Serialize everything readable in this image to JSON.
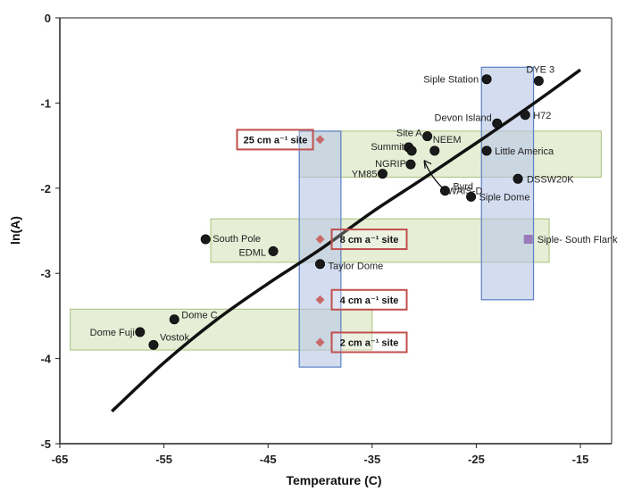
{
  "chart_data": {
    "type": "scatter",
    "xlabel": "Temperature (C)",
    "ylabel": "ln(A)",
    "xlim": [
      -65,
      -12
    ],
    "ylim": [
      -5,
      0
    ],
    "xticks": [
      -65,
      -55,
      -45,
      -35,
      -25,
      -15
    ],
    "yticks": [
      0,
      -1,
      -2,
      -3,
      -4,
      -5
    ],
    "tick_labels_x": [
      "-65",
      "-55",
      "-45",
      "-35",
      "-25",
      "-15"
    ],
    "tick_labels_y": [
      "0",
      "-1",
      "-2",
      "-3",
      "-4",
      "-5"
    ],
    "curve": [
      [
        -60,
        -4.62
      ],
      [
        -55,
        -4.05
      ],
      [
        -50,
        -3.55
      ],
      [
        -45,
        -3.12
      ],
      [
        -40,
        -2.72
      ],
      [
        -35,
        -2.28
      ],
      [
        -30,
        -1.88
      ],
      [
        -25,
        -1.47
      ],
      [
        -20,
        -1.05
      ],
      [
        -15,
        -0.61
      ]
    ],
    "stations": [
      {
        "name": "Siple Station",
        "x": -24,
        "y": -0.72
      },
      {
        "name": "DYE 3",
        "x": -19,
        "y": -0.74
      },
      {
        "name": "Devon Island",
        "x": -23,
        "y": -1.24
      },
      {
        "name": "H72",
        "x": -20.3,
        "y": -1.14
      },
      {
        "name": "Site A",
        "x": -29.7,
        "y": -1.39
      },
      {
        "name": "Summit",
        "x": -31.5,
        "y": -1.52
      },
      {
        "name": "",
        "x": -31.2,
        "y": -1.56
      },
      {
        "name": "NEEM",
        "x": -29,
        "y": -1.56
      },
      {
        "name": "Little America",
        "x": -24,
        "y": -1.56
      },
      {
        "name": "NGRIP",
        "x": -31.3,
        "y": -1.72
      },
      {
        "name": "YM85",
        "x": -34,
        "y": -1.83
      },
      {
        "name": "DSSW20K",
        "x": -21,
        "y": -1.89
      },
      {
        "name": "Byrd",
        "x": -28,
        "y": -2.03
      },
      {
        "name": "Siple Dome",
        "x": -25.5,
        "y": -2.1
      },
      {
        "name": "South Pole",
        "x": -51,
        "y": -2.6
      },
      {
        "name": "EDML",
        "x": -44.5,
        "y": -2.74
      },
      {
        "name": "Taylor Dome",
        "x": -40,
        "y": -2.89
      },
      {
        "name": "Dome C",
        "x": -54,
        "y": -3.54
      },
      {
        "name": "Dome Fuji",
        "x": -57.3,
        "y": -3.69
      },
      {
        "name": "Vostok",
        "x": -56,
        "y": -3.84
      }
    ],
    "wais_d": {
      "label": "WAIS-D"
    },
    "siple_south_flank": {
      "label": "Siple- South Flank",
      "x": -20,
      "y": -2.6
    },
    "sites": [
      {
        "label": "25 cm a⁻¹ site",
        "x": -40,
        "y": -1.43
      },
      {
        "label": "8 cm a⁻¹ site",
        "x": -40,
        "y": -2.6
      },
      {
        "label": "4 cm a⁻¹ site",
        "x": -40,
        "y": -3.31
      },
      {
        "label": "2 cm a⁻¹ site",
        "x": -40,
        "y": -3.81
      }
    ],
    "green_bands": [
      {
        "x": [
          -42,
          -13
        ],
        "y": [
          -1.87,
          -1.33
        ]
      },
      {
        "x": [
          -50.5,
          -18
        ],
        "y": [
          -2.87,
          -2.36
        ]
      },
      {
        "x": [
          -64,
          -35
        ],
        "y": [
          -3.9,
          -3.42
        ]
      }
    ],
    "blue_bands": [
      {
        "x": [
          -42,
          -38
        ],
        "y": [
          -4.1,
          -1.33
        ]
      },
      {
        "x": [
          -24.5,
          -19.5
        ],
        "y": [
          -3.31,
          -0.58
        ]
      }
    ],
    "colors": {
      "green_fill": "#e3ebcf",
      "green_stroke": "#a9c07a",
      "blue_fill": "#b7c7e6",
      "blue_stroke": "#5a7fc4",
      "point": "#1a1a1a",
      "site_marker": "#c96a6a",
      "site_box": "#c0504d",
      "purple": "#9a7ab8",
      "curve": "#111111"
    }
  }
}
